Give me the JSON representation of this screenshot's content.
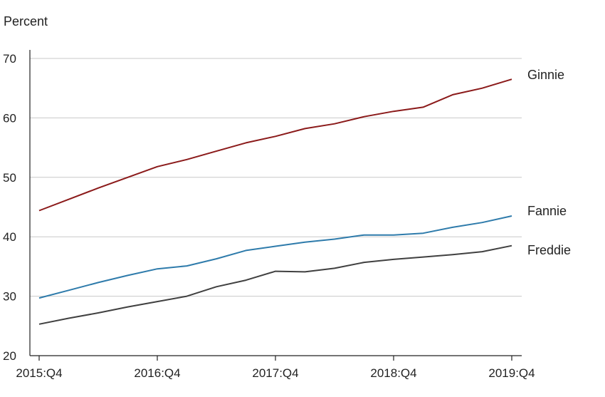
{
  "chart_data": {
    "type": "line",
    "title": "",
    "ylabel": "Percent",
    "xlabel": "",
    "ylim": [
      20,
      70
    ],
    "yticks": [
      20,
      30,
      40,
      50,
      60,
      70
    ],
    "grid": true,
    "legend": "inline-right",
    "x": [
      "2015:Q4",
      "2016:Q1",
      "2016:Q2",
      "2016:Q3",
      "2016:Q4",
      "2017:Q1",
      "2017:Q2",
      "2017:Q3",
      "2017:Q4",
      "2018:Q1",
      "2018:Q2",
      "2018:Q3",
      "2018:Q4",
      "2019:Q1",
      "2019:Q2",
      "2019:Q3",
      "2019:Q4"
    ],
    "xtick_labels": [
      "2015:Q4",
      "2016:Q4",
      "2017:Q4",
      "2018:Q4",
      "2019:Q4"
    ],
    "series": [
      {
        "name": "Ginnie",
        "color": "#8b1a1a",
        "values": [
          44.4,
          46.3,
          48.2,
          50.0,
          51.8,
          53.0,
          54.4,
          55.8,
          56.9,
          58.2,
          59.0,
          60.2,
          61.1,
          61.8,
          63.9,
          65.0,
          66.5
        ]
      },
      {
        "name": "Fannie",
        "color": "#2e7bab",
        "values": [
          29.7,
          31.0,
          32.3,
          33.5,
          34.6,
          35.1,
          36.3,
          37.7,
          38.4,
          39.1,
          39.6,
          40.3,
          40.3,
          40.6,
          41.6,
          42.4,
          43.5
        ]
      },
      {
        "name": "Freddie",
        "color": "#404040",
        "values": [
          25.3,
          26.3,
          27.2,
          28.2,
          29.1,
          30.0,
          31.6,
          32.7,
          34.2,
          34.1,
          34.7,
          35.7,
          36.2,
          36.6,
          37.0,
          37.5,
          38.5
        ]
      }
    ]
  }
}
